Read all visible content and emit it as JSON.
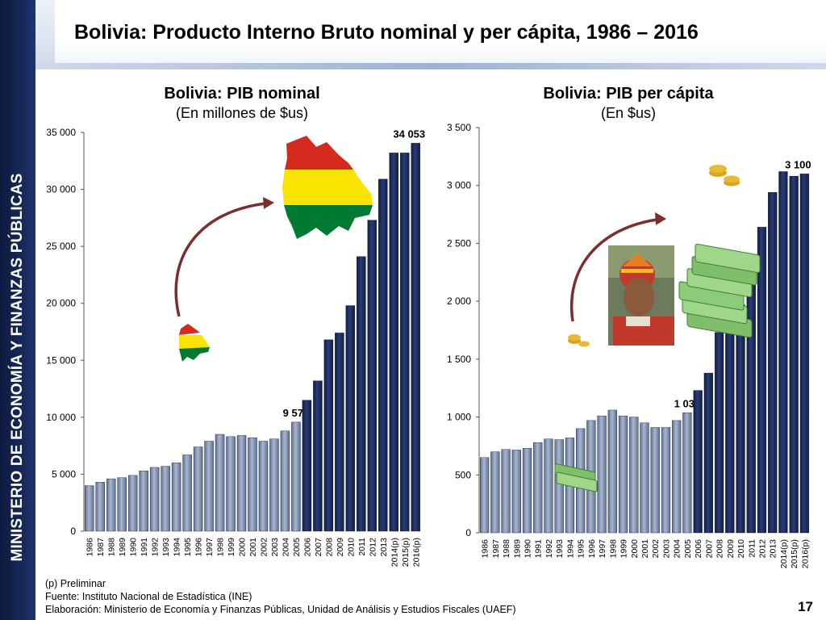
{
  "sidebar": {
    "text": "MINISTERIO DE ECONOMÍA Y FINANZAS PÚBLICAS"
  },
  "header": {
    "title": "Bolivia: Producto Interno Bruto nominal y per cápita, 1986 – 2016"
  },
  "left_chart": {
    "title": "Bolivia: PIB nominal",
    "subtitle": "(En millones de $us)"
  },
  "right_chart": {
    "title": "Bolivia: PIB per cápita",
    "subtitle": "(En $us)"
  },
  "footnotes": {
    "line1": "(p) Preliminar",
    "line2": "Fuente: Instituto Nacional de Estadística (INE)",
    "line3": "Elaboración: Ministerio de Economía y Finanzas Públicas, Unidad de Análisis y Estudios Fiscales (UAEF)"
  },
  "page_number": "17",
  "colors": {
    "sidebar": "#16285a",
    "bar_dark": "#1b2a5c",
    "bar_light": "#8a9bb8",
    "arrow": "#7a2e2e"
  },
  "icons": [
    "bolivia-flag-map-icon",
    "bolivia-flag-map-small-icon",
    "money-stack-icon",
    "money-stack-small-icon",
    "person-photo-icon",
    "curved-arrow-icon"
  ],
  "chart_data": [
    {
      "type": "bar",
      "title": "Bolivia: PIB nominal",
      "subtitle": "(En millones de $us)",
      "categories": [
        "1986",
        "1987",
        "1988",
        "1989",
        "1990",
        "1991",
        "1992",
        "1993",
        "1994",
        "1995",
        "1996",
        "1997",
        "1998",
        "1999",
        "2000",
        "2001",
        "2002",
        "2003",
        "2004",
        "2005",
        "2006",
        "2007",
        "2008",
        "2009",
        "2010",
        "2011",
        "2012",
        "2013",
        "2014(p)",
        "2015(p)",
        "2016(p)"
      ],
      "values": [
        4000,
        4300,
        4600,
        4700,
        4900,
        5300,
        5600,
        5700,
        6000,
        6700,
        7400,
        7900,
        8500,
        8300,
        8400,
        8200,
        7900,
        8100,
        8800,
        9574,
        11500,
        13200,
        16800,
        17400,
        19800,
        24100,
        27300,
        30900,
        33200,
        33200,
        34053
      ],
      "data_labels": {
        "2005": "9 574",
        "2016(p)": "34 053"
      },
      "ylim": [
        0,
        35000
      ],
      "yticks": [
        0,
        5000,
        10000,
        15000,
        20000,
        25000,
        30000,
        35000
      ],
      "ytick_labels": [
        "0",
        "5 000",
        "10 000",
        "15 000",
        "20 000",
        "25 000",
        "30 000",
        "35 000"
      ],
      "highlight_from": "2006",
      "grid": false
    },
    {
      "type": "bar",
      "title": "Bolivia: PIB per cápita",
      "subtitle": "(En $us)",
      "categories": [
        "1986",
        "1987",
        "1988",
        "1989",
        "1990",
        "1991",
        "1992",
        "1993",
        "1994",
        "1995",
        "1996",
        "1997",
        "1998",
        "1999",
        "2000",
        "2001",
        "2002",
        "2003",
        "2004",
        "2005",
        "2006",
        "2007",
        "2008",
        "2009",
        "2010",
        "2011",
        "2012",
        "2013",
        "2014(p)",
        "2015(p)",
        "2016(p)"
      ],
      "values": [
        650,
        700,
        720,
        715,
        730,
        780,
        810,
        805,
        820,
        900,
        970,
        1010,
        1060,
        1010,
        1000,
        950,
        910,
        910,
        970,
        1037,
        1230,
        1380,
        1730,
        1770,
        1970,
        2370,
        2640,
        2940,
        3120,
        3080,
        3100
      ],
      "data_labels": {
        "2005": "1 037",
        "2016(p)": "3 100"
      },
      "ylim": [
        0,
        3500
      ],
      "yticks": [
        0,
        500,
        1000,
        1500,
        2000,
        2500,
        3000,
        3500
      ],
      "ytick_labels": [
        "0",
        "500",
        "1 000",
        "1 500",
        "2 000",
        "2 500",
        "3 000",
        "3 500"
      ],
      "highlight_from": "2006",
      "grid": false
    }
  ]
}
